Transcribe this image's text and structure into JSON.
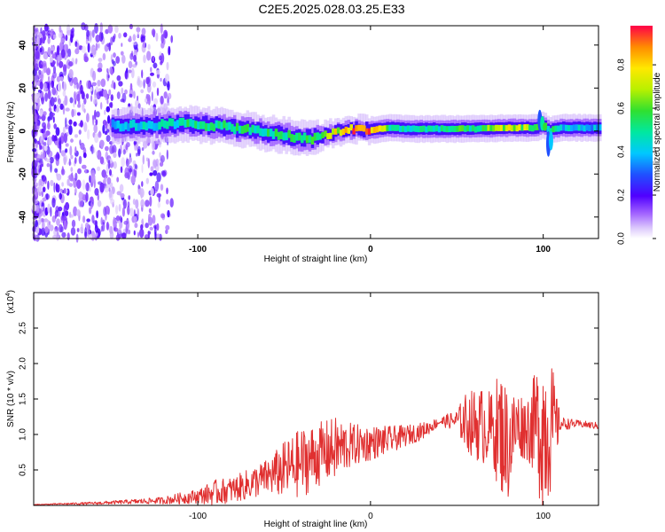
{
  "figure": {
    "title": "C2E5.2025.028.03.25.E33"
  },
  "chart_data": [
    {
      "type": "heatmap",
      "title": "C2E5.2025.028.03.25.E33",
      "xlabel": "Height of straight line (km)",
      "ylabel": "Frequency (Hz)",
      "xlim": [
        -195,
        132
      ],
      "ylim": [
        -50,
        49
      ],
      "x_ticks": [
        -100,
        0,
        100
      ],
      "y_ticks": [
        40,
        20,
        0,
        -20,
        -40
      ],
      "colorbar": {
        "label": "Normalized spectral amplitude",
        "range": [
          0.0,
          0.98
        ],
        "ticks": [
          0.0,
          0.2,
          0.4,
          0.6,
          0.8
        ],
        "colormap": [
          "#ffffff",
          "#c8a8f8",
          "#8000ff",
          "#3030ff",
          "#00c0ff",
          "#00e8a0",
          "#30e030",
          "#b0f000",
          "#ffee00",
          "#ff9000",
          "#ff0040"
        ]
      },
      "ridge": {
        "x": [
          -195,
          -180,
          -160,
          -140,
          -120,
          -110,
          -100,
          -90,
          -80,
          -70,
          -60,
          -50,
          -40,
          -35,
          -30,
          -20,
          -10,
          0,
          10,
          20,
          40,
          60,
          80,
          95,
          100,
          103,
          106,
          110,
          120,
          132
        ],
        "y": [
          2.5,
          3,
          2.5,
          2.5,
          3,
          3.5,
          3,
          2.5,
          1.5,
          0.5,
          -1,
          -2,
          -3.5,
          -3.5,
          -2.5,
          -0.5,
          1,
          0.5,
          1.5,
          1,
          1,
          1,
          1.5,
          1.5,
          3,
          0,
          1,
          1.5,
          1.5,
          1.5
        ],
        "amplitude": [
          0.3,
          0.35,
          0.4,
          0.45,
          0.5,
          0.55,
          0.55,
          0.55,
          0.55,
          0.55,
          0.55,
          0.55,
          0.58,
          0.6,
          0.65,
          0.8,
          0.95,
          0.98,
          0.6,
          0.5,
          0.55,
          0.6,
          0.75,
          0.7,
          0.6,
          0.5,
          0.55,
          0.45,
          0.45,
          0.4
        ]
      }
    },
    {
      "type": "line",
      "xlabel": "Height of straight line (km)",
      "ylabel": "SNR (10 * v/v)",
      "y_multiplier_label": "(x10",
      "y_multiplier_exp": "4",
      "xlim": [
        -195,
        132
      ],
      "ylim": [
        0,
        3.0
      ],
      "x_ticks": [
        -100,
        0,
        100
      ],
      "y_ticks": [
        0.5,
        1.0,
        1.5,
        2.0,
        2.5
      ],
      "series": [
        {
          "color": "#e03030",
          "x": [
            -195,
            -180,
            -160,
            -140,
            -120,
            -110,
            -100,
            -90,
            -80,
            -70,
            -60,
            -50,
            -40,
            -30,
            -20,
            -10,
            0,
            10,
            20,
            30,
            40,
            50,
            55,
            60,
            65,
            70,
            75,
            80,
            85,
            90,
            95,
            100,
            105,
            110,
            120,
            132
          ],
          "y": [
            0.01,
            0.02,
            0.03,
            0.05,
            0.07,
            0.1,
            0.13,
            0.18,
            0.22,
            0.3,
            0.4,
            0.5,
            0.6,
            0.72,
            0.8,
            0.85,
            0.88,
            0.92,
            0.98,
            1.05,
            1.18,
            1.2,
            1.18,
            1.15,
            1.12,
            1.1,
            1.05,
            0.85,
            1.15,
            1.1,
            1.15,
            1.1,
            1.12,
            1.15,
            1.15,
            1.12
          ],
          "envelope": [
            0.005,
            0.01,
            0.02,
            0.03,
            0.05,
            0.08,
            0.1,
            0.18,
            0.18,
            0.22,
            0.25,
            0.4,
            0.5,
            0.45,
            0.45,
            0.3,
            0.25,
            0.2,
            0.15,
            0.12,
            0.06,
            0.15,
            0.4,
            0.5,
            0.55,
            0.5,
            0.9,
            0.8,
            0.5,
            0.45,
            0.7,
            1.3,
            0.9,
            0.1,
            0.05,
            0.05
          ]
        }
      ]
    }
  ]
}
